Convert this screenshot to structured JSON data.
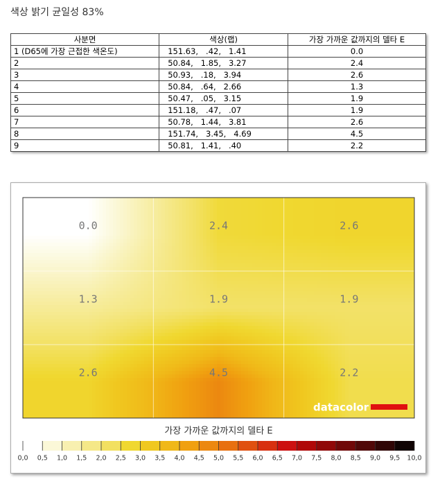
{
  "title": "색상 밝기 균일성 83%",
  "table": {
    "header": [
      "사분면",
      "색상(랩)",
      "가장 가까운 값까지의 델타 E"
    ],
    "rows": [
      [
        "1 (D65에 가장 근접한 색온도)",
        "151.63,   .42,   1.41",
        "0.0"
      ],
      [
        "2",
        "50.84,   1.85,   3.27",
        "2.4"
      ],
      [
        "3",
        "50.93,   .18,   3.94",
        "2.6"
      ],
      [
        "4",
        "50.84,   .64,   2.66",
        "1.3"
      ],
      [
        "5",
        "50.47,   .05,   3.15",
        "1.9"
      ],
      [
        "6",
        "151.18,   .47,   .07",
        "1.9"
      ],
      [
        "7",
        "50.78,   1.44,   3.81",
        "2.6"
      ],
      [
        "8",
        "151.74,   3.45,   4.69",
        "4.5"
      ],
      [
        "9",
        "50.81,   1.41,   .40",
        "2.2"
      ]
    ]
  },
  "heatmap": {
    "cells": [
      [
        {
          "value": 0,
          "label": "0.0"
        },
        {
          "value": 2.4,
          "label": "2.4"
        },
        {
          "value": 2.6,
          "label": "2.6"
        }
      ],
      [
        {
          "value": 1.3,
          "label": "1.3"
        },
        {
          "value": 1.9,
          "label": "1.9"
        },
        {
          "value": 1.9,
          "label": "1.9"
        }
      ],
      [
        {
          "value": 2.6,
          "label": "2.6"
        },
        {
          "value": 4.5,
          "label": "4.5"
        },
        {
          "value": 2.2,
          "label": "2.2"
        }
      ]
    ],
    "logo": "datacolor",
    "colorbar_title": "가장 가까운 값까지의 델타 E",
    "colors": [
      "#ffffff",
      "#fbf8d8",
      "#f8f0b0",
      "#f5e888",
      "#f2e060",
      "#f0d830",
      "#f0c820",
      "#f0b818",
      "#f0a010",
      "#ec8810",
      "#e87010",
      "#e05010",
      "#d83010",
      "#cc1010",
      "#b00808",
      "#900808",
      "#700808",
      "#500808",
      "#300606",
      "#100404"
    ],
    "ticks": [
      {
        "value": 0,
        "label": "0,0"
      },
      {
        "value": 0.5,
        "label": "0,5"
      },
      {
        "value": 1,
        "label": "1,0"
      },
      {
        "value": 1.5,
        "label": "1,5"
      },
      {
        "value": 2,
        "label": "2,0"
      },
      {
        "value": 2.5,
        "label": "2,5"
      },
      {
        "value": 3,
        "label": "3,0"
      },
      {
        "value": 3.5,
        "label": "3,5"
      },
      {
        "value": 4,
        "label": "4,0"
      },
      {
        "value": 4.5,
        "label": "4,5"
      },
      {
        "value": 5,
        "label": "5,0"
      },
      {
        "value": 5.5,
        "label": "5,5"
      },
      {
        "value": 6,
        "label": "6,0"
      },
      {
        "value": 6.5,
        "label": "6,5"
      },
      {
        "value": 7,
        "label": "7,0"
      },
      {
        "value": 7.5,
        "label": "7,5"
      },
      {
        "value": 8,
        "label": "8,0"
      },
      {
        "value": 8.5,
        "label": "8,5"
      },
      {
        "value": 9,
        "label": "9,0"
      },
      {
        "value": 9.5,
        "label": "9,5"
      },
      {
        "value": 10,
        "label": "10,0"
      }
    ]
  }
}
